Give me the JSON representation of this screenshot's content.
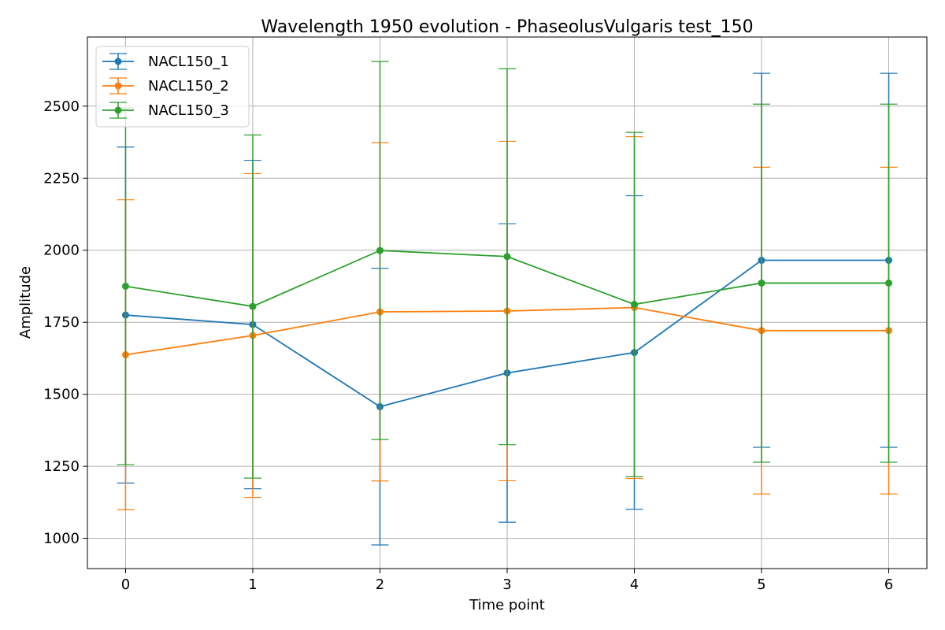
{
  "chart_data": {
    "type": "line",
    "title": "Wavelength 1950 evolution - PhaseolusVulgaris test_150",
    "xlabel": "Time point",
    "ylabel": "Amplitude",
    "x": [
      0,
      1,
      2,
      3,
      4,
      5,
      6
    ],
    "xlim": [
      -0.3,
      6.3
    ],
    "ylim": [
      895,
      2740
    ],
    "xticks": [
      0,
      1,
      2,
      3,
      4,
      5,
      6
    ],
    "yticks": [
      1000,
      1250,
      1500,
      1750,
      2000,
      2250,
      2500
    ],
    "grid": true,
    "legend_position": "top-left",
    "series": [
      {
        "name": "NACL150_1",
        "color": "#1f77b4",
        "values": [
          1775,
          1742,
          1457,
          1574,
          1645,
          1965,
          1965
        ],
        "error_upper": [
          2358,
          2312,
          1937,
          2092,
          2189,
          2614,
          2614
        ],
        "error_lower": [
          1192,
          1172,
          977,
          1056,
          1101,
          1316,
          1316
        ]
      },
      {
        "name": "NACL150_2",
        "color": "#ff7f0e",
        "values": [
          1637,
          1704,
          1786,
          1789,
          1801,
          1721,
          1721
        ],
        "error_upper": [
          2175,
          2266,
          2373,
          2378,
          2394,
          2288,
          2288
        ],
        "error_lower": [
          1099,
          1142,
          1199,
          1200,
          1208,
          1154,
          1154
        ]
      },
      {
        "name": "NACL150_3",
        "color": "#2ca02c",
        "values": [
          1875,
          1805,
          1999,
          1978,
          1812,
          1886,
          1886
        ],
        "error_upper": [
          2494,
          2400,
          2655,
          2630,
          2409,
          2507,
          2507
        ],
        "error_lower": [
          1256,
          1209,
          1343,
          1325,
          1214,
          1264,
          1264
        ]
      }
    ]
  }
}
